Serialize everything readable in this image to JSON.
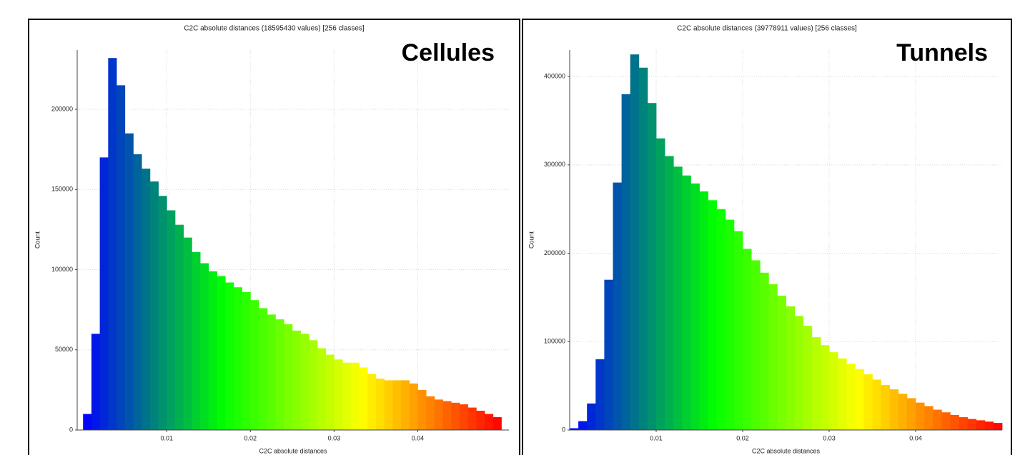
{
  "chart_data": [
    {
      "type": "histogram",
      "title": "C2C absolute distances (18595430 values)  [256 classes]",
      "label": "Cellules",
      "xlabel": "C2C absolute distances",
      "ylabel": "Count",
      "bins": [
        0,
        0.001,
        0.002,
        0.003,
        0.004,
        0.005,
        0.006,
        0.007,
        0.008,
        0.009,
        0.01,
        0.011,
        0.012,
        0.013,
        0.014,
        0.015,
        0.016,
        0.017,
        0.018,
        0.019,
        0.02,
        0.021,
        0.022,
        0.023,
        0.024,
        0.025,
        0.026,
        0.027,
        0.028,
        0.029,
        0.03,
        0.031,
        0.032,
        0.033,
        0.034,
        0.035,
        0.036,
        0.037,
        0.038,
        0.039,
        0.04,
        0.041,
        0.042,
        0.043,
        0.044,
        0.045,
        0.046,
        0.047,
        0.048,
        0.049,
        0.05
      ],
      "values": [
        10000,
        60000,
        170000,
        232000,
        215000,
        185000,
        172000,
        163000,
        155000,
        146000,
        137000,
        128000,
        120000,
        111000,
        104000,
        99000,
        96000,
        92000,
        89000,
        86000,
        81000,
        76000,
        72000,
        69000,
        66000,
        62000,
        60000,
        56000,
        51000,
        47000,
        44000,
        42000,
        42000,
        39000,
        35000,
        32000,
        31000,
        31000,
        31000,
        29000,
        25000,
        21000,
        19000,
        18000,
        17000,
        16000,
        14000,
        12000,
        10000,
        8000
      ],
      "colors": [
        "#0000ff",
        "#00ff00",
        "#ffff00",
        "#ff0000"
      ],
      "xlim": [
        -0.0007,
        0.0509
      ],
      "xticks": [
        0.01,
        0.02,
        0.03,
        0.04
      ],
      "ylim": [
        0,
        237000
      ],
      "yticks": [
        0,
        50000,
        100000,
        150000,
        200000
      ],
      "grid": true
    },
    {
      "type": "histogram",
      "title": "C2C absolute distances (39778911 values)  [256 classes]",
      "label": "Tunnels",
      "xlabel": "C2C absolute distances",
      "ylabel": "Count",
      "bins": [
        0,
        0.001,
        0.002,
        0.003,
        0.004,
        0.005,
        0.006,
        0.007,
        0.008,
        0.009,
        0.01,
        0.011,
        0.012,
        0.013,
        0.014,
        0.015,
        0.016,
        0.017,
        0.018,
        0.019,
        0.02,
        0.021,
        0.022,
        0.023,
        0.024,
        0.025,
        0.026,
        0.027,
        0.028,
        0.029,
        0.03,
        0.031,
        0.032,
        0.033,
        0.034,
        0.035,
        0.036,
        0.037,
        0.038,
        0.039,
        0.04,
        0.041,
        0.042,
        0.043,
        0.044,
        0.045,
        0.046,
        0.047,
        0.048,
        0.049,
        0.05
      ],
      "values": [
        2000,
        10000,
        30000,
        80000,
        170000,
        280000,
        380000,
        425000,
        410000,
        370000,
        330000,
        310000,
        298000,
        288000,
        279000,
        270000,
        260000,
        250000,
        238000,
        225000,
        205000,
        192000,
        178000,
        165000,
        152000,
        140000,
        129000,
        118000,
        105000,
        96000,
        88000,
        81000,
        75000,
        69000,
        63000,
        57000,
        51000,
        46000,
        41000,
        36000,
        31000,
        27000,
        23000,
        20000,
        17000,
        14500,
        12500,
        11000,
        9500,
        8000
      ],
      "colors": [
        "#0000ff",
        "#00ff00",
        "#ffff00",
        "#ff0000"
      ],
      "xlim": [
        0,
        0.05
      ],
      "xticks": [
        0.01,
        0.02,
        0.03,
        0.04
      ],
      "ylim": [
        0,
        430000
      ],
      "yticks": [
        0,
        100000,
        200000,
        300000,
        400000
      ],
      "grid": true
    }
  ]
}
